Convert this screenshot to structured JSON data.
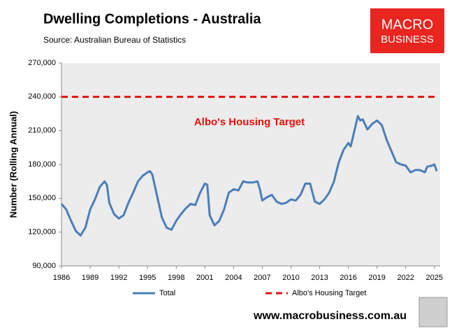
{
  "chart_data": {
    "type": "line",
    "title": "Dwelling Completions - Australia",
    "subtitle": "Source: Australian Bureau of Statistics",
    "y_label": "Number (Rolling Annual)",
    "annotation": "Albo's Housing Target",
    "xlim": [
      1986,
      2025.6
    ],
    "xticks": [
      1986,
      1989,
      1992,
      1995,
      1998,
      2001,
      2004,
      2007,
      2010,
      2013,
      2016,
      2019,
      2022,
      2025
    ],
    "ylim": [
      90000,
      270000
    ],
    "yticks": [
      {
        "value": 90000,
        "label": "90,000"
      },
      {
        "value": 120000,
        "label": "120,000"
      },
      {
        "value": 150000,
        "label": "150,000"
      },
      {
        "value": 180000,
        "label": "180,000"
      },
      {
        "value": 210000,
        "label": "210,000"
      },
      {
        "value": 240000,
        "label": "240,000"
      },
      {
        "value": 270000,
        "label": "270,000"
      }
    ],
    "series": [
      {
        "name": "Total",
        "color": "#4a7ebb",
        "dashed": false,
        "x": [
          1986,
          1986.5,
          1987,
          1987.5,
          1988,
          1988.5,
          1989,
          1989.5,
          1990,
          1990.5,
          1990.75,
          1991,
          1991.5,
          1992,
          1992.5,
          1993,
          1993.5,
          1994,
          1994.5,
          1995,
          1995.25,
          1995.5,
          1996,
          1996.5,
          1997,
          1997.5,
          1998,
          1998.5,
          1999,
          1999.5,
          2000,
          2000.5,
          2001,
          2001.25,
          2001.5,
          2002,
          2002.5,
          2003,
          2003.5,
          2004,
          2004.5,
          2005,
          2005.5,
          2006,
          2006.5,
          2006.75,
          2007,
          2007.5,
          2008,
          2008.5,
          2009,
          2009.5,
          2010,
          2010.5,
          2011,
          2011.5,
          2012,
          2012.5,
          2013,
          2013.5,
          2014,
          2014.5,
          2015,
          2015.5,
          2016,
          2016.25,
          2016.5,
          2017,
          2017.25,
          2017.5,
          2018,
          2018.5,
          2019,
          2019.5,
          2020,
          2020.5,
          2021,
          2021.5,
          2022,
          2022.5,
          2023,
          2023.5,
          2024,
          2024.25,
          2024.75,
          2025,
          2025.25
        ],
        "values": [
          145000,
          140000,
          130000,
          121000,
          117000,
          124000,
          140000,
          149000,
          160000,
          165000,
          162000,
          146000,
          136000,
          132000,
          135000,
          146000,
          155000,
          165000,
          170000,
          173000,
          174000,
          171000,
          152000,
          133000,
          124000,
          122000,
          130000,
          136000,
          141000,
          145000,
          144000,
          155000,
          163000,
          162000,
          135000,
          126000,
          130000,
          140000,
          155000,
          158000,
          157000,
          165000,
          164000,
          164000,
          165000,
          158000,
          148000,
          151000,
          153000,
          147000,
          145000,
          146000,
          149000,
          148000,
          153000,
          163000,
          163000,
          147000,
          145000,
          149000,
          155000,
          165000,
          182000,
          193000,
          199000,
          196000,
          205000,
          223000,
          219000,
          220000,
          211000,
          216000,
          219000,
          215000,
          202000,
          192000,
          182000,
          180000,
          179000,
          173000,
          175000,
          175000,
          173000,
          178000,
          179000,
          180000,
          174000
        ]
      },
      {
        "name": "Albo's Housing Target",
        "color": "#e8100c",
        "dashed": true,
        "x": [
          1986,
          2025.25
        ],
        "values": [
          240000,
          240000
        ]
      }
    ]
  },
  "logo": [
    "MACRO",
    "BUSINESS"
  ],
  "footer": "www.macrobusiness.com.au"
}
